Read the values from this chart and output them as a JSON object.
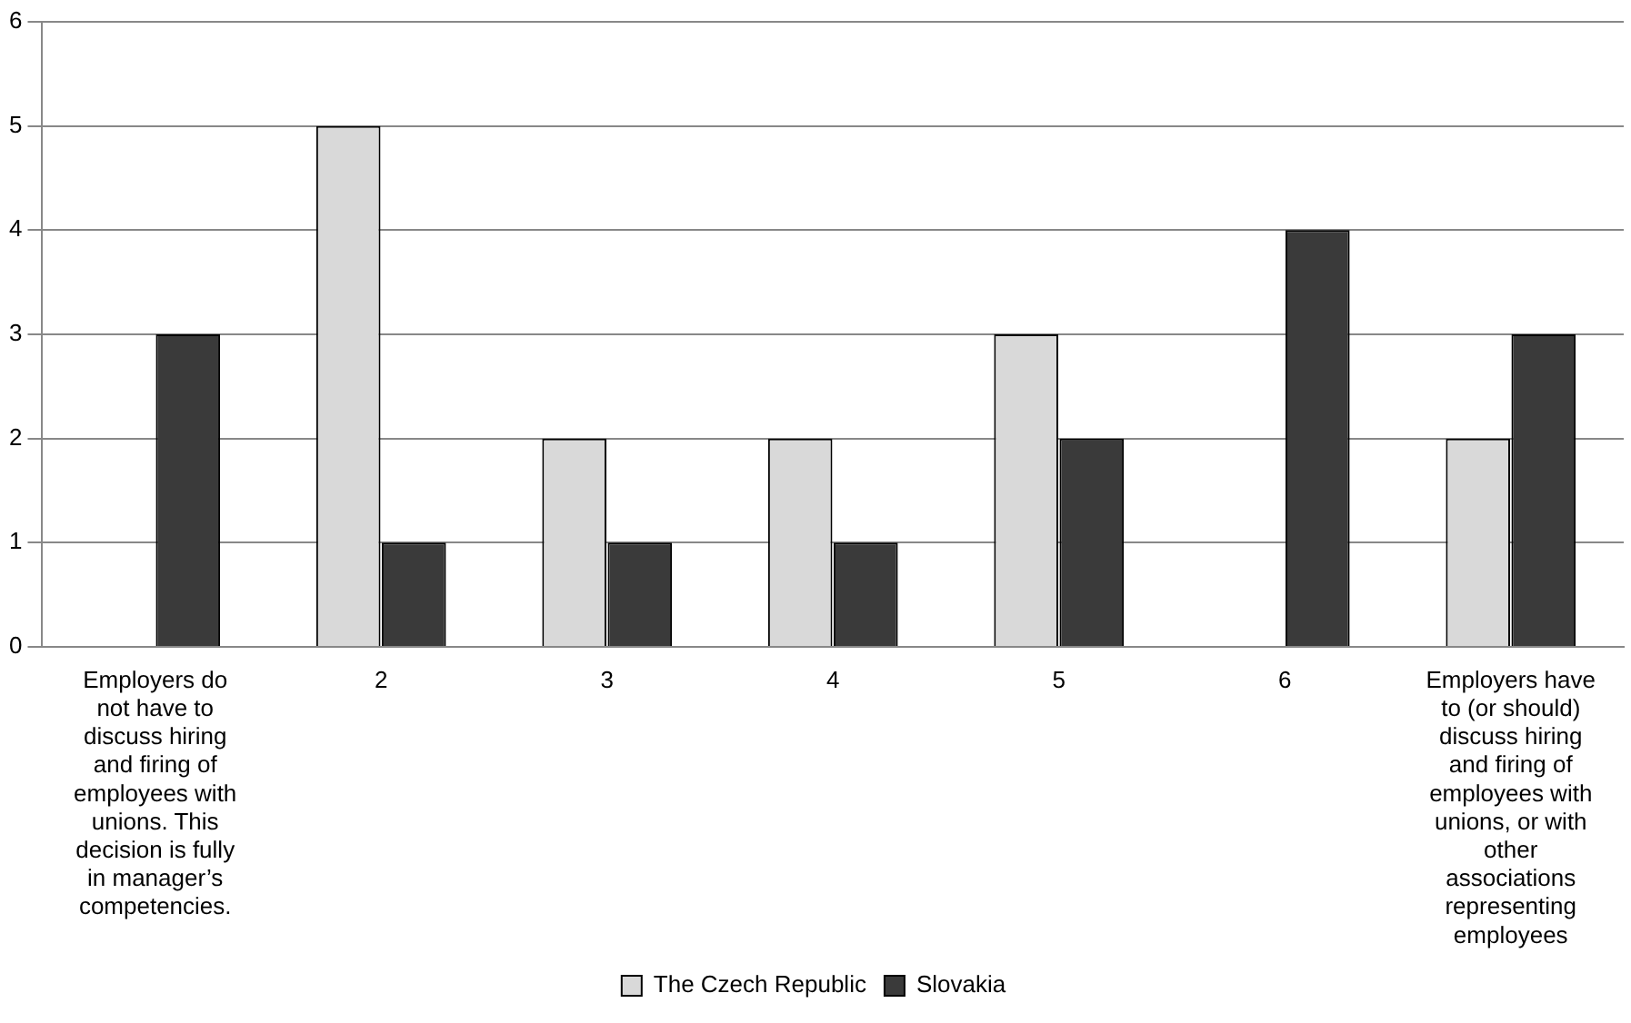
{
  "chart_data": {
    "type": "bar",
    "categories": [
      "Employers do not have to discuss hiring and firing of employees with unions. This decision is fully in manager’s competencies.",
      "2",
      "3",
      "4",
      "5",
      "6",
      "Employers have to (or should) discuss hiring and firing of employees with unions, or with other associations representing employees"
    ],
    "series": [
      {
        "name": "The Czech Republic",
        "color": "#d9d9d9",
        "values": [
          0,
          5,
          2,
          2,
          3,
          0,
          2
        ]
      },
      {
        "name": "Slovakia",
        "color": "#3a3a3a",
        "values": [
          3,
          1,
          1,
          1,
          2,
          4,
          3
        ]
      }
    ],
    "ylim": [
      0,
      6
    ],
    "yticks": [
      0,
      1,
      2,
      3,
      4,
      5,
      6
    ],
    "grid": "y",
    "legend": "bottom"
  }
}
